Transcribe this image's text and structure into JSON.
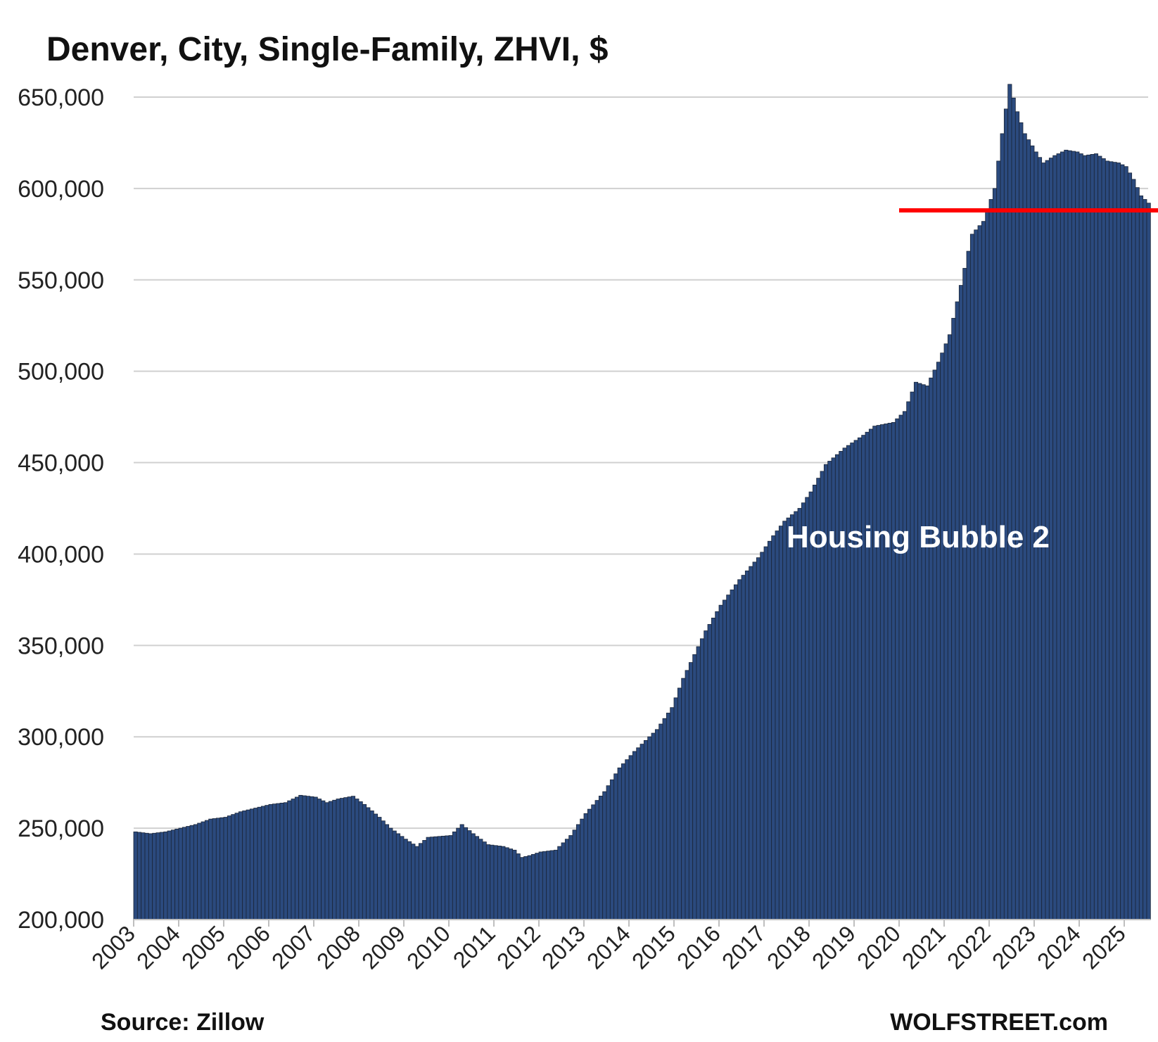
{
  "chart_data": {
    "type": "bar",
    "title": "Denver, City, Single-Family, ZHVI, $",
    "xlabel": "",
    "ylabel": "",
    "ylim": [
      200000,
      650000
    ],
    "yticks": [
      "200,000",
      "250,000",
      "300,000",
      "350,000",
      "400,000",
      "450,000",
      "500,000",
      "550,000",
      "600,000",
      "650,000"
    ],
    "ytick_values": [
      200000,
      250000,
      300000,
      350000,
      400000,
      450000,
      500000,
      550000,
      600000,
      650000
    ],
    "xticks": [
      "2003",
      "2004",
      "2005",
      "2006",
      "2007",
      "2008",
      "2009",
      "2010",
      "2011",
      "2012",
      "2013",
      "2014",
      "2015",
      "2016",
      "2017",
      "2018",
      "2019",
      "2020",
      "2021",
      "2022",
      "2023",
      "2024",
      "2025"
    ],
    "x_start": "2003-01",
    "frequency": "monthly",
    "grid": true,
    "bar_color": "#2b4a7e",
    "bar_edge_color": "#1a2538",
    "anchors": [
      [
        "2003-01",
        248000
      ],
      [
        "2003-05",
        247000
      ],
      [
        "2003-09",
        248000
      ],
      [
        "2004-01",
        250000
      ],
      [
        "2004-05",
        252000
      ],
      [
        "2004-09",
        255000
      ],
      [
        "2005-01",
        256000
      ],
      [
        "2005-05",
        259000
      ],
      [
        "2005-09",
        261000
      ],
      [
        "2006-01",
        263000
      ],
      [
        "2006-05",
        264000
      ],
      [
        "2006-09",
        268000
      ],
      [
        "2007-01",
        267000
      ],
      [
        "2007-04",
        264000
      ],
      [
        "2007-07",
        266000
      ],
      [
        "2007-11",
        267500
      ],
      [
        "2008-02",
        263000
      ],
      [
        "2008-06",
        256000
      ],
      [
        "2008-09",
        250000
      ],
      [
        "2009-01",
        244000
      ],
      [
        "2009-04",
        240000
      ],
      [
        "2009-07",
        245000
      ],
      [
        "2009-10",
        245500
      ],
      [
        "2010-01",
        246000
      ],
      [
        "2010-04",
        252000
      ],
      [
        "2010-07",
        247000
      ],
      [
        "2010-11",
        241000
      ],
      [
        "2011-03",
        240000
      ],
      [
        "2011-06",
        238000
      ],
      [
        "2011-08",
        234000
      ],
      [
        "2011-10",
        235000
      ],
      [
        "2012-01",
        237000
      ],
      [
        "2012-05",
        238000
      ],
      [
        "2012-09",
        246000
      ],
      [
        "2013-01",
        258000
      ],
      [
        "2013-06",
        270000
      ],
      [
        "2013-10",
        283000
      ],
      [
        "2014-02",
        292000
      ],
      [
        "2014-08",
        304000
      ],
      [
        "2014-12",
        316000
      ],
      [
        "2015-03",
        332000
      ],
      [
        "2015-06",
        345000
      ],
      [
        "2015-09",
        358000
      ],
      [
        "2016-01",
        372000
      ],
      [
        "2016-06",
        386000
      ],
      [
        "2016-11",
        398000
      ],
      [
        "2017-03",
        410000
      ],
      [
        "2017-06",
        418000
      ],
      [
        "2017-10",
        425000
      ],
      [
        "2018-01",
        434000
      ],
      [
        "2018-05",
        449000
      ],
      [
        "2018-10",
        458000
      ],
      [
        "2019-03",
        465000
      ],
      [
        "2019-06",
        470000
      ],
      [
        "2019-11",
        472000
      ],
      [
        "2020-02",
        478000
      ],
      [
        "2020-05",
        494000
      ],
      [
        "2020-08",
        492000
      ],
      [
        "2020-11",
        505000
      ],
      [
        "2021-02",
        520000
      ],
      [
        "2021-05",
        547000
      ],
      [
        "2021-08",
        575000
      ],
      [
        "2021-11",
        582000
      ],
      [
        "2022-02",
        600000
      ],
      [
        "2022-04",
        630000
      ],
      [
        "2022-06",
        657000
      ],
      [
        "2022-08",
        642000
      ],
      [
        "2022-10",
        630000
      ],
      [
        "2023-01",
        620000
      ],
      [
        "2023-03",
        614000
      ],
      [
        "2023-06",
        618000
      ],
      [
        "2023-09",
        621000
      ],
      [
        "2023-12",
        620000
      ],
      [
        "2024-02",
        618000
      ],
      [
        "2024-05",
        619000
      ],
      [
        "2024-08",
        615000
      ],
      [
        "2024-11",
        614000
      ],
      [
        "2025-01",
        612000
      ],
      [
        "2025-03",
        605000
      ],
      [
        "2025-05",
        596000
      ],
      [
        "2025-07",
        592000
      ]
    ],
    "reference_line": {
      "value": 588000,
      "from": "2020-01",
      "color": "#ff0000"
    },
    "annotations": [
      "Housing Bubble 2"
    ]
  },
  "footer": {
    "source": "Source: Zillow",
    "brand": "WOLFSTREET.com"
  }
}
